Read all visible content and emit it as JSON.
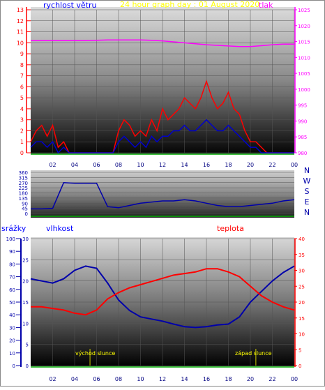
{
  "header": {
    "wind_label": "rychlost větru",
    "title": "24 hour graph day : 01 August 2020",
    "pressure_label": "tlak"
  },
  "lower_labels": {
    "rain": "srážky",
    "humidity": "vlhkost",
    "temperature": "teplota"
  },
  "events": {
    "sunrise": "východ slunce",
    "sunset": "západ slunce"
  },
  "colors": {
    "wind_gust": "#ff0000",
    "wind_avg": "#0000cc",
    "pressure": "#ff00ff",
    "direction": "#0000aa",
    "humidity": "#0000aa",
    "temperature": "#ff0000",
    "title": "#ffff00",
    "event_line": "#cccc00",
    "axis_green": "#00aa00"
  },
  "chart_data": [
    {
      "id": "wind_pressure",
      "type": "line",
      "ylabel": "rychlost větru",
      "y2label": "tlak",
      "x_ticks": [
        "02",
        "04",
        "06",
        "08",
        "10",
        "12",
        "14",
        "16",
        "18",
        "20",
        "22",
        "00"
      ],
      "y_ticks": [
        "0",
        "1",
        "2",
        "3",
        "4",
        "5",
        "6",
        "7",
        "8",
        "9",
        "10",
        "11",
        "12",
        "13"
      ],
      "y_range": [
        0,
        13
      ],
      "y2_ticks": [
        "980",
        "985",
        "990",
        "995",
        "1000",
        "1005",
        "1010",
        "1015",
        "1020",
        "1025"
      ],
      "y2_range": [
        980,
        1025
      ],
      "x_range_hours": [
        0,
        24
      ],
      "grid": true,
      "series": [
        {
          "name": "tlak",
          "x": [
            0,
            1,
            2,
            3,
            4,
            5,
            6,
            7,
            8,
            9,
            10,
            11,
            12,
            13,
            14,
            15,
            16,
            17,
            18,
            19,
            20,
            21,
            22,
            23,
            24
          ],
          "values": [
            1015.3,
            1015.3,
            1015.3,
            1015.3,
            1015.3,
            1015.3,
            1015.4,
            1015.5,
            1015.5,
            1015.5,
            1015.5,
            1015.4,
            1015.2,
            1014.9,
            1014.6,
            1014.3,
            1014.0,
            1013.8,
            1013.6,
            1013.4,
            1013.4,
            1013.7,
            1014.0,
            1014.2,
            1014.2
          ]
        },
        {
          "x": [
            0,
            0.5,
            1,
            1.5,
            2,
            2.5,
            3,
            3.5,
            4,
            4.5,
            5,
            5.5,
            6,
            6.5,
            7,
            7.5,
            8,
            8.5,
            9,
            9.5,
            10,
            10.5,
            11,
            11.5,
            12,
            12.5,
            13,
            13.5,
            14,
            14.5,
            15,
            15.5,
            16,
            16.5,
            17,
            17.5,
            18,
            18.5,
            19,
            19.5,
            20,
            20.5,
            21,
            21.5,
            22,
            22.5,
            23,
            23.5,
            24
          ],
          "values": [
            1,
            2,
            2.5,
            1.5,
            2.5,
            0.5,
            1,
            0,
            0,
            0,
            0,
            0,
            0,
            0,
            0,
            0,
            2,
            3,
            2.5,
            1.5,
            2,
            1.5,
            3,
            2,
            4,
            3,
            3.5,
            4,
            5,
            4.5,
            4,
            5,
            6.5,
            5,
            4,
            4.5,
            5.5,
            4,
            3.5,
            2,
            1,
            1,
            0.5,
            0,
            0,
            0,
            0,
            0,
            0
          ]
        },
        {
          "x": [
            0,
            0.5,
            1,
            1.5,
            2,
            2.5,
            3,
            3.5,
            4,
            4.5,
            5,
            5.5,
            6,
            6.5,
            7,
            7.5,
            8,
            8.5,
            9,
            9.5,
            10,
            10.5,
            11,
            11.5,
            12,
            12.5,
            13,
            13.5,
            14,
            14.5,
            15,
            15.5,
            16,
            16.5,
            17,
            17.5,
            18,
            18.5,
            19,
            19.5,
            20,
            20.5,
            21,
            21.5,
            22,
            22.5,
            23,
            23.5,
            24
          ],
          "values": [
            0.5,
            1,
            1,
            0.5,
            1,
            0,
            0.5,
            0,
            0,
            0,
            0,
            0,
            0,
            0,
            0,
            0,
            1,
            1.5,
            1,
            0.5,
            1,
            0.5,
            1.5,
            1,
            1.5,
            1.5,
            2,
            2,
            2.5,
            2,
            2,
            2.5,
            3,
            2.5,
            2,
            2,
            2.5,
            2,
            1.5,
            1,
            0.5,
            0.5,
            0,
            0,
            0,
            0,
            0,
            0,
            0
          ]
        }
      ]
    },
    {
      "id": "direction",
      "type": "line",
      "ylabel": "",
      "y_ticks": [
        "0",
        "45",
        "90",
        "135",
        "180",
        "225",
        "270",
        "315",
        "360"
      ],
      "y_range": [
        0,
        360
      ],
      "compass_labels": [
        "N",
        "W",
        "S",
        "E",
        "N"
      ],
      "x_range_hours": [
        0,
        24
      ],
      "series": [
        {
          "x": [
            0,
            1,
            2,
            3,
            4,
            5,
            6,
            7,
            8,
            9,
            10,
            11,
            12,
            13,
            14,
            15,
            16,
            17,
            18,
            19,
            20,
            21,
            22,
            23,
            24
          ],
          "values": [
            40,
            40,
            45,
            270,
            265,
            265,
            265,
            60,
            50,
            70,
            90,
            100,
            110,
            110,
            120,
            110,
            90,
            70,
            60,
            60,
            70,
            80,
            90,
            110,
            120
          ]
        }
      ]
    },
    {
      "id": "rain_humidity_temperature",
      "type": "line",
      "x_ticks": [
        "02",
        "04",
        "06",
        "08",
        "10",
        "12",
        "14",
        "16",
        "18",
        "20",
        "22",
        "00"
      ],
      "x_range_hours": [
        0,
        24
      ],
      "rain_axis": {
        "label": "srážky",
        "ticks": [
          "0",
          "10",
          "20",
          "30",
          "40",
          "50",
          "60",
          "70",
          "80",
          "90",
          "100"
        ],
        "range": [
          0,
          100
        ]
      },
      "humidity_axis": {
        "label": "vlhkost",
        "ticks": [
          "0",
          "5",
          "10",
          "15",
          "20",
          "25",
          "30"
        ],
        "range": [
          0,
          30
        ]
      },
      "temperature_axis": {
        "label": "teplota",
        "ticks": [
          "0",
          "5",
          "10",
          "15",
          "20",
          "25",
          "30",
          "35",
          "40"
        ],
        "range": [
          0,
          40
        ]
      },
      "events_hours": {
        "sunrise": 5.4,
        "sunset": 20.5
      },
      "series": [
        {
          "name": "vlhkost",
          "x": [
            0,
            1,
            2,
            3,
            4,
            5,
            6,
            7,
            8,
            9,
            10,
            11,
            12,
            13,
            14,
            15,
            16,
            17,
            18,
            19,
            20,
            21,
            22,
            23,
            24
          ],
          "values": [
            20.5,
            20,
            19.5,
            20.5,
            22.5,
            23.5,
            23,
            19.5,
            15.5,
            13,
            11.5,
            11,
            10.5,
            9.8,
            9.2,
            9,
            9.2,
            9.6,
            9.8,
            11.5,
            15,
            17.5,
            20,
            22,
            23.5
          ]
        },
        {
          "name": "teplota",
          "x": [
            0,
            1,
            2,
            3,
            4,
            5,
            6,
            7,
            8,
            9,
            10,
            11,
            12,
            13,
            14,
            15,
            16,
            17,
            18,
            19,
            20,
            21,
            22,
            23,
            24
          ],
          "values": [
            18.5,
            18.5,
            18,
            17.5,
            16.5,
            16,
            17.5,
            21,
            23,
            24.5,
            25.5,
            26.5,
            27.5,
            28.5,
            29,
            29.5,
            30.5,
            30.5,
            29.5,
            28,
            25,
            22,
            20,
            18.5,
            17.5
          ]
        }
      ]
    }
  ]
}
